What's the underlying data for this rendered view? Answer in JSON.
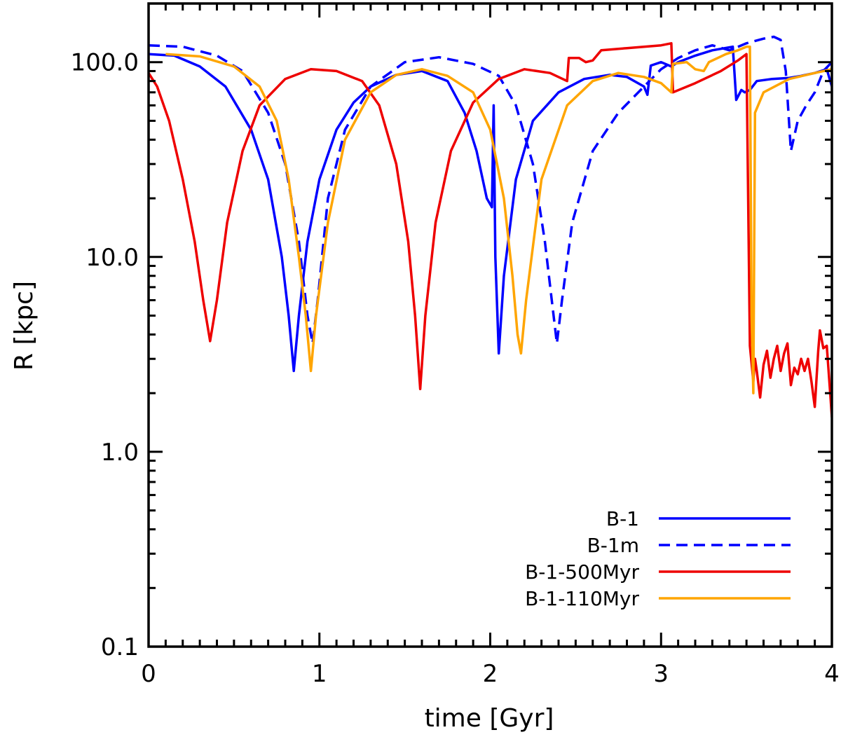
{
  "chart_data": {
    "type": "line",
    "title": "",
    "xlabel": "time [Gyr]",
    "ylabel": "R [kpc]",
    "xlim": [
      0,
      4
    ],
    "ylim": [
      0.1,
      200
    ],
    "yscale": "log",
    "xticks": [
      0,
      1,
      2,
      3,
      4
    ],
    "xtick_labels": [
      "0",
      "1",
      "2",
      "3",
      "4"
    ],
    "yticks": [
      0.1,
      1,
      10,
      100
    ],
    "ytick_labels": [
      "0.1",
      "1.0",
      "10.0",
      "100.0"
    ],
    "legend_position": "bottom-right",
    "series": [
      {
        "name": "B-1",
        "color": "#0000ff",
        "dash": "solid",
        "points": [
          [
            0,
            110
          ],
          [
            0.15,
            108
          ],
          [
            0.3,
            95
          ],
          [
            0.45,
            75
          ],
          [
            0.6,
            45
          ],
          [
            0.7,
            25
          ],
          [
            0.78,
            10
          ],
          [
            0.82,
            5
          ],
          [
            0.85,
            2.6
          ],
          [
            0.88,
            5
          ],
          [
            0.93,
            12
          ],
          [
            1.0,
            25
          ],
          [
            1.1,
            45
          ],
          [
            1.2,
            62
          ],
          [
            1.3,
            75
          ],
          [
            1.45,
            86
          ],
          [
            1.6,
            90
          ],
          [
            1.75,
            80
          ],
          [
            1.85,
            55
          ],
          [
            1.92,
            35
          ],
          [
            1.98,
            20
          ],
          [
            2.01,
            18
          ],
          [
            2.02,
            60
          ],
          [
            2.03,
            10
          ],
          [
            2.05,
            3.2
          ],
          [
            2.08,
            8
          ],
          [
            2.15,
            25
          ],
          [
            2.25,
            50
          ],
          [
            2.4,
            70
          ],
          [
            2.55,
            82
          ],
          [
            2.7,
            86
          ],
          [
            2.8,
            84
          ],
          [
            2.9,
            75
          ],
          [
            2.92,
            68
          ],
          [
            2.94,
            96
          ],
          [
            3.0,
            100
          ],
          [
            3.06,
            95
          ],
          [
            3.1,
            100
          ],
          [
            3.2,
            108
          ],
          [
            3.3,
            115
          ],
          [
            3.42,
            120
          ],
          [
            3.44,
            64
          ],
          [
            3.47,
            72
          ],
          [
            3.49,
            70
          ],
          [
            3.52,
            72
          ],
          [
            3.56,
            80
          ],
          [
            3.65,
            82
          ],
          [
            3.75,
            83
          ],
          [
            3.82,
            85
          ],
          [
            3.9,
            88
          ],
          [
            3.97,
            92
          ],
          [
            4.0,
            75
          ]
        ]
      },
      {
        "name": "B-1m",
        "color": "#0000ff",
        "dash": "dashed",
        "points": [
          [
            0,
            122
          ],
          [
            0.2,
            120
          ],
          [
            0.4,
            108
          ],
          [
            0.55,
            90
          ],
          [
            0.7,
            55
          ],
          [
            0.8,
            30
          ],
          [
            0.88,
            12
          ],
          [
            0.93,
            5
          ],
          [
            0.96,
            3.6
          ],
          [
            0.99,
            6
          ],
          [
            1.05,
            20
          ],
          [
            1.15,
            45
          ],
          [
            1.3,
            75
          ],
          [
            1.5,
            100
          ],
          [
            1.7,
            106
          ],
          [
            1.9,
            98
          ],
          [
            2.05,
            85
          ],
          [
            2.15,
            60
          ],
          [
            2.25,
            30
          ],
          [
            2.32,
            12
          ],
          [
            2.36,
            6
          ],
          [
            2.39,
            3.6
          ],
          [
            2.42,
            6
          ],
          [
            2.48,
            15
          ],
          [
            2.6,
            35
          ],
          [
            2.75,
            55
          ],
          [
            2.9,
            75
          ],
          [
            3.0,
            92
          ],
          [
            3.1,
            105
          ],
          [
            3.2,
            115
          ],
          [
            3.3,
            122
          ],
          [
            3.4,
            115
          ],
          [
            3.5,
            125
          ],
          [
            3.6,
            132
          ],
          [
            3.66,
            135
          ],
          [
            3.7,
            130
          ],
          [
            3.73,
            90
          ],
          [
            3.76,
            35
          ],
          [
            3.8,
            50
          ],
          [
            3.85,
            60
          ],
          [
            3.9,
            70
          ],
          [
            3.95,
            90
          ],
          [
            4.0,
            100
          ]
        ]
      },
      {
        "name": "B-1-500Myr",
        "color": "#ee0000",
        "dash": "solid",
        "points": [
          [
            0,
            88
          ],
          [
            0.05,
            75
          ],
          [
            0.12,
            50
          ],
          [
            0.2,
            25
          ],
          [
            0.27,
            12
          ],
          [
            0.32,
            6
          ],
          [
            0.36,
            3.7
          ],
          [
            0.4,
            6
          ],
          [
            0.46,
            15
          ],
          [
            0.55,
            35
          ],
          [
            0.65,
            60
          ],
          [
            0.8,
            82
          ],
          [
            0.95,
            92
          ],
          [
            1.1,
            90
          ],
          [
            1.25,
            80
          ],
          [
            1.35,
            60
          ],
          [
            1.45,
            30
          ],
          [
            1.52,
            12
          ],
          [
            1.56,
            5
          ],
          [
            1.59,
            2.1
          ],
          [
            1.62,
            5
          ],
          [
            1.68,
            15
          ],
          [
            1.77,
            35
          ],
          [
            1.9,
            62
          ],
          [
            2.05,
            82
          ],
          [
            2.2,
            92
          ],
          [
            2.35,
            88
          ],
          [
            2.45,
            80
          ],
          [
            2.46,
            105
          ],
          [
            2.52,
            105
          ],
          [
            2.56,
            100
          ],
          [
            2.6,
            102
          ],
          [
            2.65,
            115
          ],
          [
            2.8,
            118
          ],
          [
            3.0,
            122
          ],
          [
            3.06,
            125
          ],
          [
            3.07,
            70
          ],
          [
            3.2,
            78
          ],
          [
            3.35,
            90
          ],
          [
            3.45,
            102
          ],
          [
            3.5,
            110
          ],
          [
            3.52,
            3.5
          ],
          [
            3.54,
            2.3
          ],
          [
            3.55,
            3.0
          ],
          [
            3.56,
            2.6
          ],
          [
            3.58,
            1.9
          ],
          [
            3.6,
            2.8
          ],
          [
            3.62,
            3.3
          ],
          [
            3.64,
            2.4
          ],
          [
            3.66,
            3.0
          ],
          [
            3.68,
            3.5
          ],
          [
            3.7,
            2.6
          ],
          [
            3.72,
            3.2
          ],
          [
            3.74,
            3.6
          ],
          [
            3.76,
            2.2
          ],
          [
            3.78,
            2.7
          ],
          [
            3.8,
            2.5
          ],
          [
            3.82,
            3.0
          ],
          [
            3.84,
            2.6
          ],
          [
            3.86,
            3.0
          ],
          [
            3.88,
            2.3
          ],
          [
            3.9,
            1.7
          ],
          [
            3.92,
            3.3
          ],
          [
            3.93,
            4.2
          ],
          [
            3.95,
            3.4
          ],
          [
            3.97,
            3.5
          ],
          [
            3.99,
            2.0
          ],
          [
            4.0,
            1.5
          ]
        ]
      },
      {
        "name": "B-1-110Myr",
        "color": "#ffa500",
        "dash": "solid",
        "points": [
          [
            0.1,
            110
          ],
          [
            0.3,
            107
          ],
          [
            0.5,
            95
          ],
          [
            0.65,
            75
          ],
          [
            0.75,
            50
          ],
          [
            0.82,
            25
          ],
          [
            0.88,
            10
          ],
          [
            0.92,
            5
          ],
          [
            0.95,
            2.6
          ],
          [
            0.98,
            5
          ],
          [
            1.05,
            15
          ],
          [
            1.15,
            40
          ],
          [
            1.3,
            70
          ],
          [
            1.45,
            86
          ],
          [
            1.6,
            92
          ],
          [
            1.75,
            85
          ],
          [
            1.9,
            70
          ],
          [
            2.0,
            45
          ],
          [
            2.08,
            20
          ],
          [
            2.13,
            8
          ],
          [
            2.16,
            4
          ],
          [
            2.18,
            3.2
          ],
          [
            2.21,
            6
          ],
          [
            2.3,
            25
          ],
          [
            2.45,
            60
          ],
          [
            2.6,
            80
          ],
          [
            2.75,
            88
          ],
          [
            2.9,
            84
          ],
          [
            3.0,
            78
          ],
          [
            3.06,
            70
          ],
          [
            3.07,
            98
          ],
          [
            3.15,
            100
          ],
          [
            3.2,
            92
          ],
          [
            3.25,
            90
          ],
          [
            3.28,
            100
          ],
          [
            3.38,
            110
          ],
          [
            3.45,
            115
          ],
          [
            3.5,
            120
          ],
          [
            3.52,
            120
          ],
          [
            3.53,
            5
          ],
          [
            3.54,
            2.0
          ],
          [
            3.55,
            55
          ],
          [
            3.6,
            70
          ],
          [
            3.75,
            82
          ],
          [
            3.9,
            88
          ],
          [
            4.0,
            92
          ]
        ]
      }
    ]
  }
}
